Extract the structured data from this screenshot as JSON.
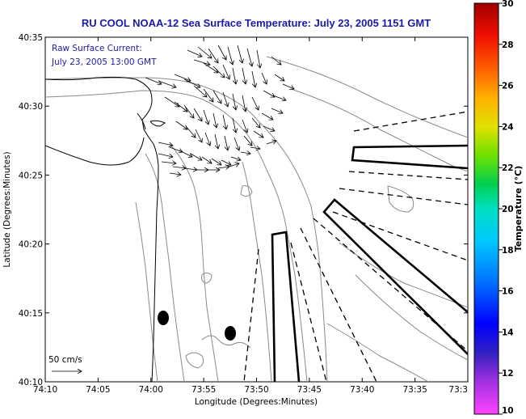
{
  "title": "RU COOL  NOAA-12  Sea Surface Temperature:  July 23, 2005 1151 GMT",
  "legend": {
    "line1": "Raw Surface Current:",
    "line2": "July 23, 2005 13:00 GMT",
    "scale_label": "50 cm/s"
  },
  "axes": {
    "xlabel": "Longitude (Degrees:Minutes)",
    "ylabel": "Latitude (Degrees:Minutes)",
    "xticks": [
      "74:10",
      "74:05",
      "74:00",
      "73:55",
      "73:50",
      "73:45",
      "73:40",
      "73:35",
      "73:3"
    ],
    "yticks": [
      "40:35",
      "40:30",
      "40:25",
      "40:20",
      "40:15",
      "40:10"
    ]
  },
  "colorbar": {
    "label": "Temperature (°C)",
    "ticks": [
      "30",
      "28",
      "26",
      "24",
      "22",
      "20",
      "18",
      "16",
      "14",
      "12",
      "10"
    ],
    "min": 10,
    "max": 30
  },
  "colors": {
    "title": "#1a1aa8",
    "contour": "#8a8a8a",
    "coast": "#000000"
  }
}
